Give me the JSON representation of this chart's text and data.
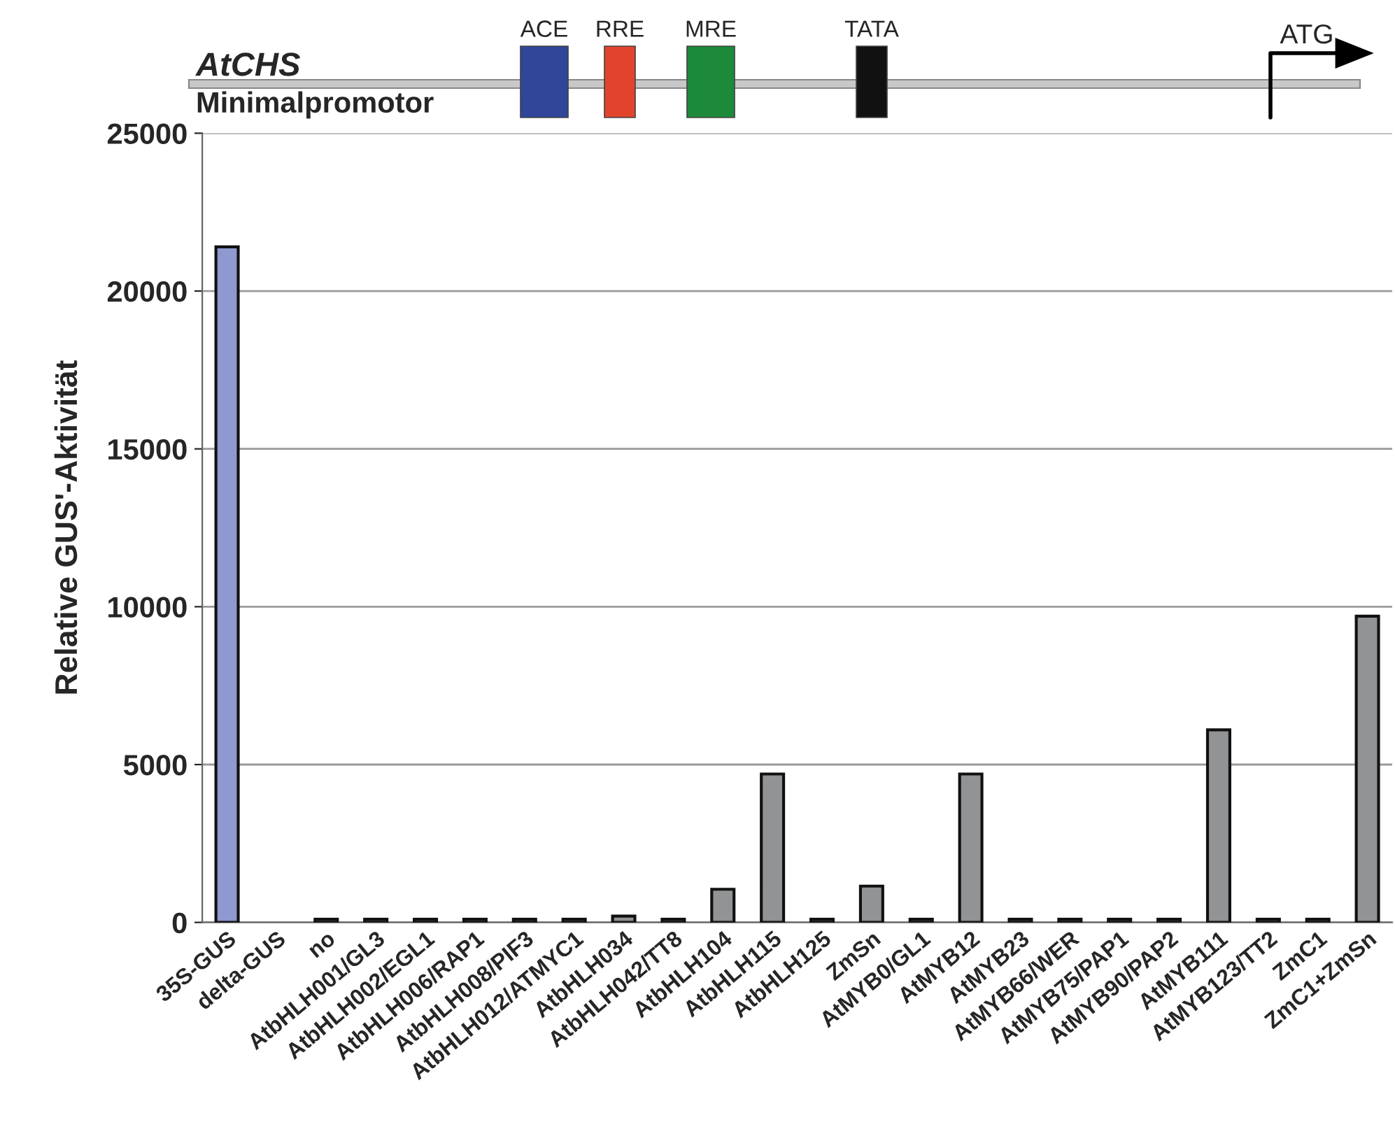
{
  "chart_data": {
    "type": "bar",
    "ylabel": "Relative GUS'-Aktivität",
    "categories": [
      "35S-GUS",
      "delta-GUS",
      "no",
      "AtbHLH001/GL3",
      "AtbHLH002/EGL1",
      "AtbHLH006/RAP1",
      "AtbHLH008/PIF3",
      "AtbHLH012/ATMYC1",
      "AtbHLH034",
      "AtbHLH042/TT8",
      "AtbHLH104",
      "AtbHLH115",
      "AtbHLH125",
      "ZmSn",
      "AtMYB0/GL1",
      "AtMYB12",
      "AtMYB23",
      "AtMYB66/WER",
      "AtMYB75/PAP1",
      "AtMYB90/PAP2",
      "AtMYB111",
      "AtMYB123/TT2",
      "ZmC1",
      "ZmC1+ZmSn"
    ],
    "values": [
      21400,
      0,
      100,
      100,
      100,
      100,
      100,
      100,
      200,
      100,
      1050,
      4700,
      100,
      1150,
      100,
      4700,
      100,
      100,
      100,
      100,
      6100,
      100,
      100,
      9700
    ],
    "colors": [
      "#8f99cf",
      "#919395",
      "#919395",
      "#919395",
      "#919395",
      "#919395",
      "#919395",
      "#919395",
      "#919395",
      "#919395",
      "#919395",
      "#919395",
      "#919395",
      "#919395",
      "#919395",
      "#919395",
      "#919395",
      "#919395",
      "#919395",
      "#919395",
      "#919395",
      "#919395",
      "#919395",
      "#919395"
    ],
    "ylim": [
      0,
      25000
    ],
    "yticks": [
      0,
      5000,
      10000,
      15000,
      20000,
      25000
    ],
    "grid": "y",
    "annotations": [
      "AtCHS",
      "Minimalpromotor",
      "ACE",
      "RRE",
      "MRE",
      "TATA",
      "ATG"
    ]
  }
}
